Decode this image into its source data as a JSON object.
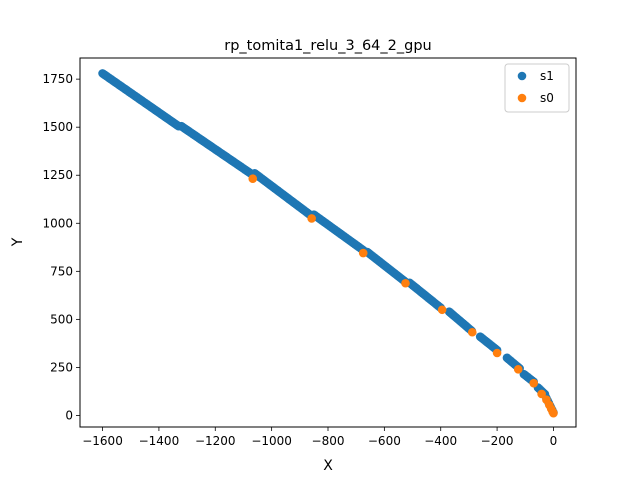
{
  "chart_data": {
    "type": "scatter",
    "title": "rp_tomita1_relu_3_64_2_gpu",
    "xlabel": "X",
    "ylabel": "Y",
    "xlim": [
      -1680,
      80
    ],
    "ylim": [
      -60,
      1860
    ],
    "xticks": [
      -1600,
      -1400,
      -1200,
      -1000,
      -800,
      -600,
      -400,
      -200,
      0
    ],
    "yticks": [
      0,
      250,
      500,
      750,
      1000,
      1250,
      1500,
      1750
    ],
    "grid": false,
    "legend_position": "top-right",
    "series": [
      {
        "name": "s1",
        "color": "#1f77b4",
        "segments": [
          {
            "x0": -1600,
            "x1": -1330,
            "y0": 1780,
            "y1": 1505
          },
          {
            "x0": -1320,
            "x1": -1060,
            "y0": 1505,
            "y1": 1245
          },
          {
            "x0": -1060,
            "x1": -860,
            "y0": 1260,
            "y1": 1040
          },
          {
            "x0": -850,
            "x1": -675,
            "y0": 1045,
            "y1": 860
          },
          {
            "x0": -660,
            "x1": -525,
            "y0": 850,
            "y1": 695
          },
          {
            "x0": -510,
            "x1": -400,
            "y0": 690,
            "y1": 560
          },
          {
            "x0": -370,
            "x1": -290,
            "y0": 540,
            "y1": 440
          },
          {
            "x0": -260,
            "x1": -200,
            "y0": 410,
            "y1": 340
          },
          {
            "x0": -165,
            "x1": -120,
            "y0": 300,
            "y1": 245
          },
          {
            "x0": -105,
            "x1": -70,
            "y0": 215,
            "y1": 175
          },
          {
            "x0": -55,
            "x1": -30,
            "y0": 145,
            "y1": 110
          },
          {
            "x0": -25,
            "x1": 0,
            "y0": 90,
            "y1": 15
          }
        ]
      },
      {
        "name": "s0",
        "color": "#ff7f0e",
        "points": [
          [
            -1067,
            1232
          ],
          [
            -858,
            1025
          ],
          [
            -675,
            845
          ],
          [
            -525,
            688
          ],
          [
            -395,
            550
          ],
          [
            -288,
            433
          ],
          [
            -200,
            325
          ],
          [
            -125,
            240
          ],
          [
            -70,
            168
          ],
          [
            -42,
            112
          ],
          [
            -25,
            82
          ],
          [
            -15,
            55
          ],
          [
            -8,
            35
          ],
          [
            -3,
            20
          ],
          [
            0,
            12
          ]
        ]
      }
    ]
  }
}
